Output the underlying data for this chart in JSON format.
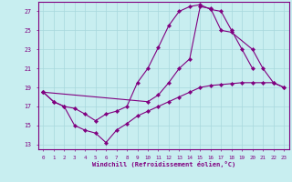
{
  "xlabel": "Windchill (Refroidissement éolien,°C)",
  "bg_color": "#c8eef0",
  "line_color": "#800080",
  "grid_color": "#a8d8dc",
  "xlim": [
    -0.5,
    23.5
  ],
  "ylim": [
    12.5,
    28.0
  ],
  "yticks": [
    13,
    15,
    17,
    19,
    21,
    23,
    25,
    27
  ],
  "xticks": [
    0,
    1,
    2,
    3,
    4,
    5,
    6,
    7,
    8,
    9,
    10,
    11,
    12,
    13,
    14,
    15,
    16,
    17,
    18,
    19,
    20,
    21,
    22,
    23
  ],
  "lines": [
    {
      "x": [
        0,
        1,
        2,
        3,
        4,
        5,
        6,
        7,
        8,
        9,
        10,
        11,
        12,
        13,
        14,
        15,
        16,
        17,
        18,
        19,
        20,
        21,
        22,
        23
      ],
      "y": [
        18.5,
        17.5,
        17.0,
        15.0,
        14.5,
        14.2,
        13.2,
        14.5,
        15.2,
        16.0,
        16.5,
        17.0,
        17.5,
        18.0,
        18.5,
        19.0,
        19.2,
        19.3,
        19.4,
        19.5,
        19.5,
        19.5,
        19.5,
        19.0
      ]
    },
    {
      "x": [
        0,
        1,
        2,
        3,
        4,
        5,
        6,
        7,
        8,
        9,
        10,
        11,
        12,
        13,
        14,
        15,
        16,
        17,
        18,
        19,
        20
      ],
      "y": [
        18.5,
        17.5,
        17.0,
        16.8,
        16.2,
        15.5,
        16.2,
        16.5,
        17.0,
        19.5,
        21.0,
        23.2,
        25.5,
        27.0,
        27.5,
        27.7,
        27.2,
        27.0,
        25.0,
        23.0,
        21.0
      ]
    },
    {
      "x": [
        0,
        10,
        11,
        12,
        13,
        14,
        15,
        16,
        17,
        18,
        20,
        21,
        22,
        23
      ],
      "y": [
        18.5,
        17.5,
        18.2,
        19.5,
        21.0,
        22.0,
        27.5,
        27.3,
        25.0,
        24.8,
        23.0,
        21.0,
        19.5,
        19.0
      ]
    }
  ]
}
